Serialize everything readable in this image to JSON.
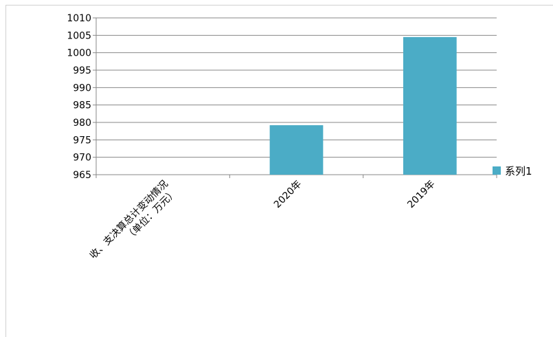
{
  "chart_data": {
    "type": "bar",
    "categories": [
      "收、支决算总计变动情况\n（单位：万元）",
      "2020年",
      "2019年"
    ],
    "series": [
      {
        "name": "系列1",
        "values": [
          null,
          979.2,
          1004.5
        ],
        "color": "#4bacc6"
      }
    ],
    "ylim": [
      965,
      1010
    ],
    "ytick_step": 5,
    "yticks": [
      "1010",
      "1005",
      "1000",
      "995",
      "990",
      "985",
      "980",
      "975",
      "970",
      "965"
    ],
    "grid": true,
    "legend_position": "right",
    "title": "",
    "xlabel": "",
    "ylabel": ""
  }
}
